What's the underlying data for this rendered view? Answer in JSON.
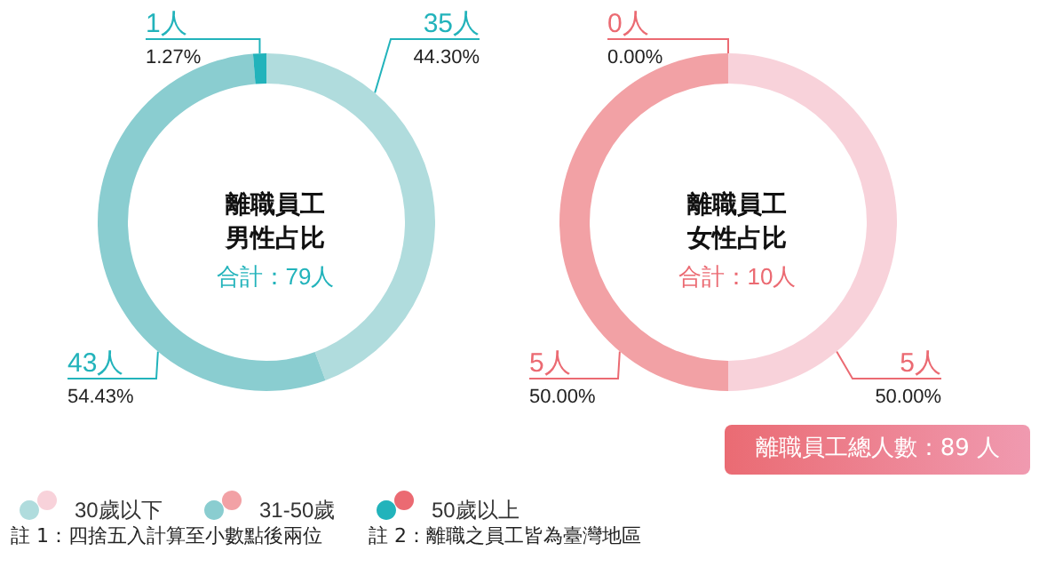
{
  "chart_data": [
    {
      "type": "donut",
      "title": "離職員工男性占比",
      "subtitle": "合計：79人",
      "categories": [
        "30歲以下",
        "31-50歲",
        "50歲以上"
      ],
      "values": [
        35,
        43,
        1
      ],
      "value_labels": [
        "35人\n44.30%",
        "43人\n54.43%",
        "1人\n1.27%"
      ],
      "colors": [
        "#b0dcdd",
        "#8acdd0",
        "#22b3bb"
      ],
      "legend": "bottom left",
      "annotations": [
        "註 1：四捨五入計算至小數點後兩位",
        "註 2：離職之員工皆為臺灣地區"
      ]
    },
    {
      "type": "donut",
      "title": "離職員工女性占比",
      "subtitle": "合計：10人",
      "categories": [
        null,
        null,
        null
      ],
      "values": [
        5,
        5,
        0
      ],
      "value_labels": [
        "5人\n50.00%",
        "5人\n50.00%",
        "0人\n0.00%"
      ],
      "colors": [
        "#f8d2da",
        "#f2a1a5",
        "#eb6a72"
      ],
      "annotations": [
        "離職員工總人數：89 人"
      ]
    }
  ]
}
